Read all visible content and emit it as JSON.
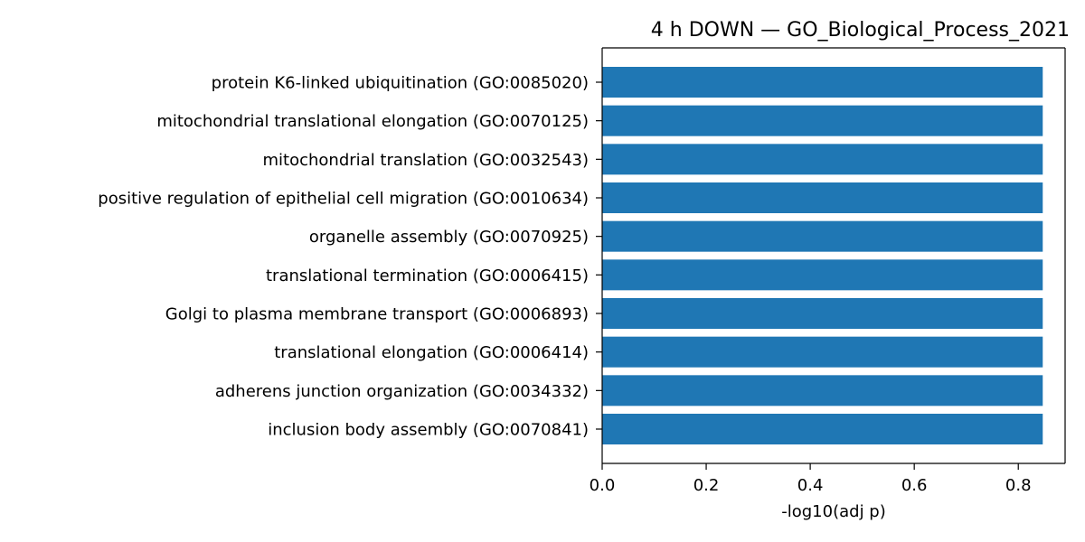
{
  "chart_data": {
    "type": "bar",
    "orientation": "horizontal",
    "title": "4 h DOWN — GO_Biological_Process_2021",
    "xlabel": "-log10(adj p)",
    "ylabel": "",
    "xlim": [
      0,
      0.89
    ],
    "xticks": [
      0.0,
      0.2,
      0.4,
      0.6,
      0.8
    ],
    "xtick_labels": [
      "0.0",
      "0.2",
      "0.4",
      "0.6",
      "0.8"
    ],
    "grid": false,
    "bar_color": "#1f77b4",
    "categories": [
      "protein K6-linked ubiquitination (GO:0085020)",
      "mitochondrial translational elongation (GO:0070125)",
      "mitochondrial translation (GO:0032543)",
      "positive regulation of epithelial cell migration (GO:0010634)",
      "organelle assembly (GO:0070925)",
      "translational termination (GO:0006415)",
      "Golgi to plasma membrane transport (GO:0006893)",
      "translational elongation (GO:0006414)",
      "adherens junction organization (GO:0034332)",
      "inclusion body assembly (GO:0070841)"
    ],
    "values": [
      0.847,
      0.847,
      0.847,
      0.847,
      0.847,
      0.847,
      0.847,
      0.847,
      0.847,
      0.847
    ]
  }
}
